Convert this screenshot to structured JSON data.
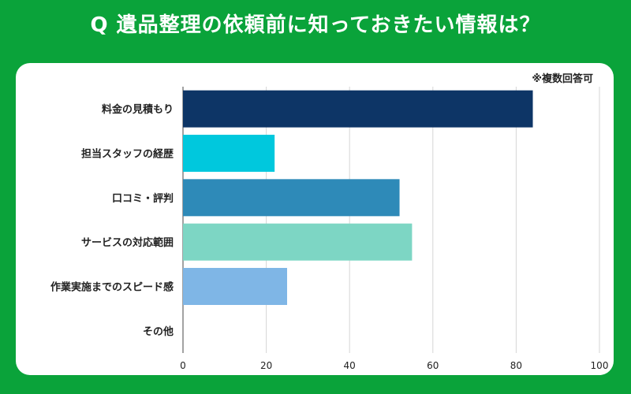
{
  "title": "Q 遺品整理の依頼前に知っておきたい情報は？",
  "note": "※複数回答可",
  "colors": {
    "background": "#0aa33a",
    "card": "#ffffff",
    "grid": "#d6d6d6",
    "axis": "#444444"
  },
  "chart_data": {
    "type": "bar",
    "orientation": "horizontal",
    "categories": [
      "料金の見積もり",
      "担当スタッフの経歴",
      "口コミ・評判",
      "サービスの対応範囲",
      "作業実施までのスピード感",
      "その他"
    ],
    "values": [
      84,
      22,
      52,
      55,
      25,
      0
    ],
    "bar_colors": [
      "#0d3566",
      "#00c8dd",
      "#2e8ab8",
      "#7dd6c4",
      "#7fb6e6",
      "#cccccc"
    ],
    "xlim": [
      0,
      100
    ],
    "xticks": [
      0,
      20,
      40,
      60,
      80,
      100
    ],
    "grid": true
  }
}
